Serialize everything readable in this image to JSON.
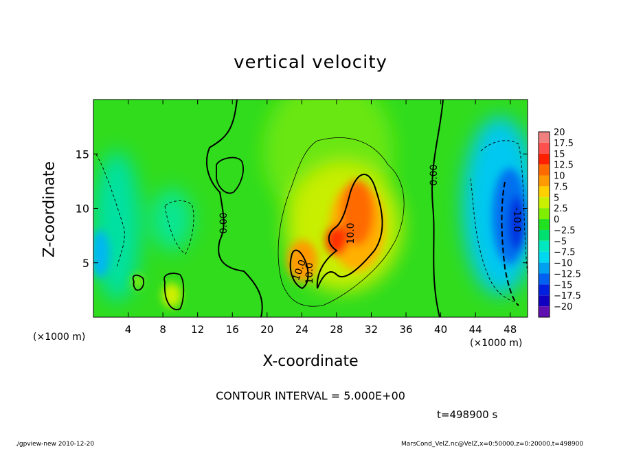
{
  "chart_data": {
    "type": "heatmap",
    "title": "vertical velocity",
    "xlabel": "X-coordinate",
    "ylabel": "Z-coordinate",
    "x_unit_label": "(×1000 m)",
    "xlim": [
      0,
      50
    ],
    "ylim": [
      0,
      20
    ],
    "x_ticks": [
      4,
      8,
      12,
      16,
      20,
      24,
      28,
      32,
      36,
      40,
      44,
      48
    ],
    "y_ticks": [
      5,
      10,
      15
    ],
    "colorbar": {
      "levels": [
        "20",
        "17.5",
        "15",
        "12.5",
        "10",
        "7.5",
        "5",
        "2.5",
        "0",
        "−2.5",
        "−5",
        "−7.5",
        "−10",
        "−12.5",
        "−15",
        "−17.5",
        "−20"
      ],
      "colors": [
        "#f08080",
        "#ff5050",
        "#ff2000",
        "#ff6a00",
        "#ff9a00",
        "#ffd000",
        "#c8f000",
        "#80ee00",
        "#20e020",
        "#00e070",
        "#00e8c0",
        "#00d8f0",
        "#00a0f0",
        "#0060f0",
        "#0020e0",
        "#1000c0",
        "#6010b0"
      ]
    },
    "contour_labels": [
      "0.00",
      "0.00",
      "10.0",
      "10.0",
      "10.0",
      "-10.0"
    ],
    "contour_interval_text": "CONTOUR INTERVAL = 5.000E+00",
    "time_text": "t=498900 s",
    "footer_left": "./gpview-new  2010-12-20",
    "footer_right": "MarsCond_VelZ.nc@VelZ,x=0:50000,z=0:20000,t=498900"
  }
}
